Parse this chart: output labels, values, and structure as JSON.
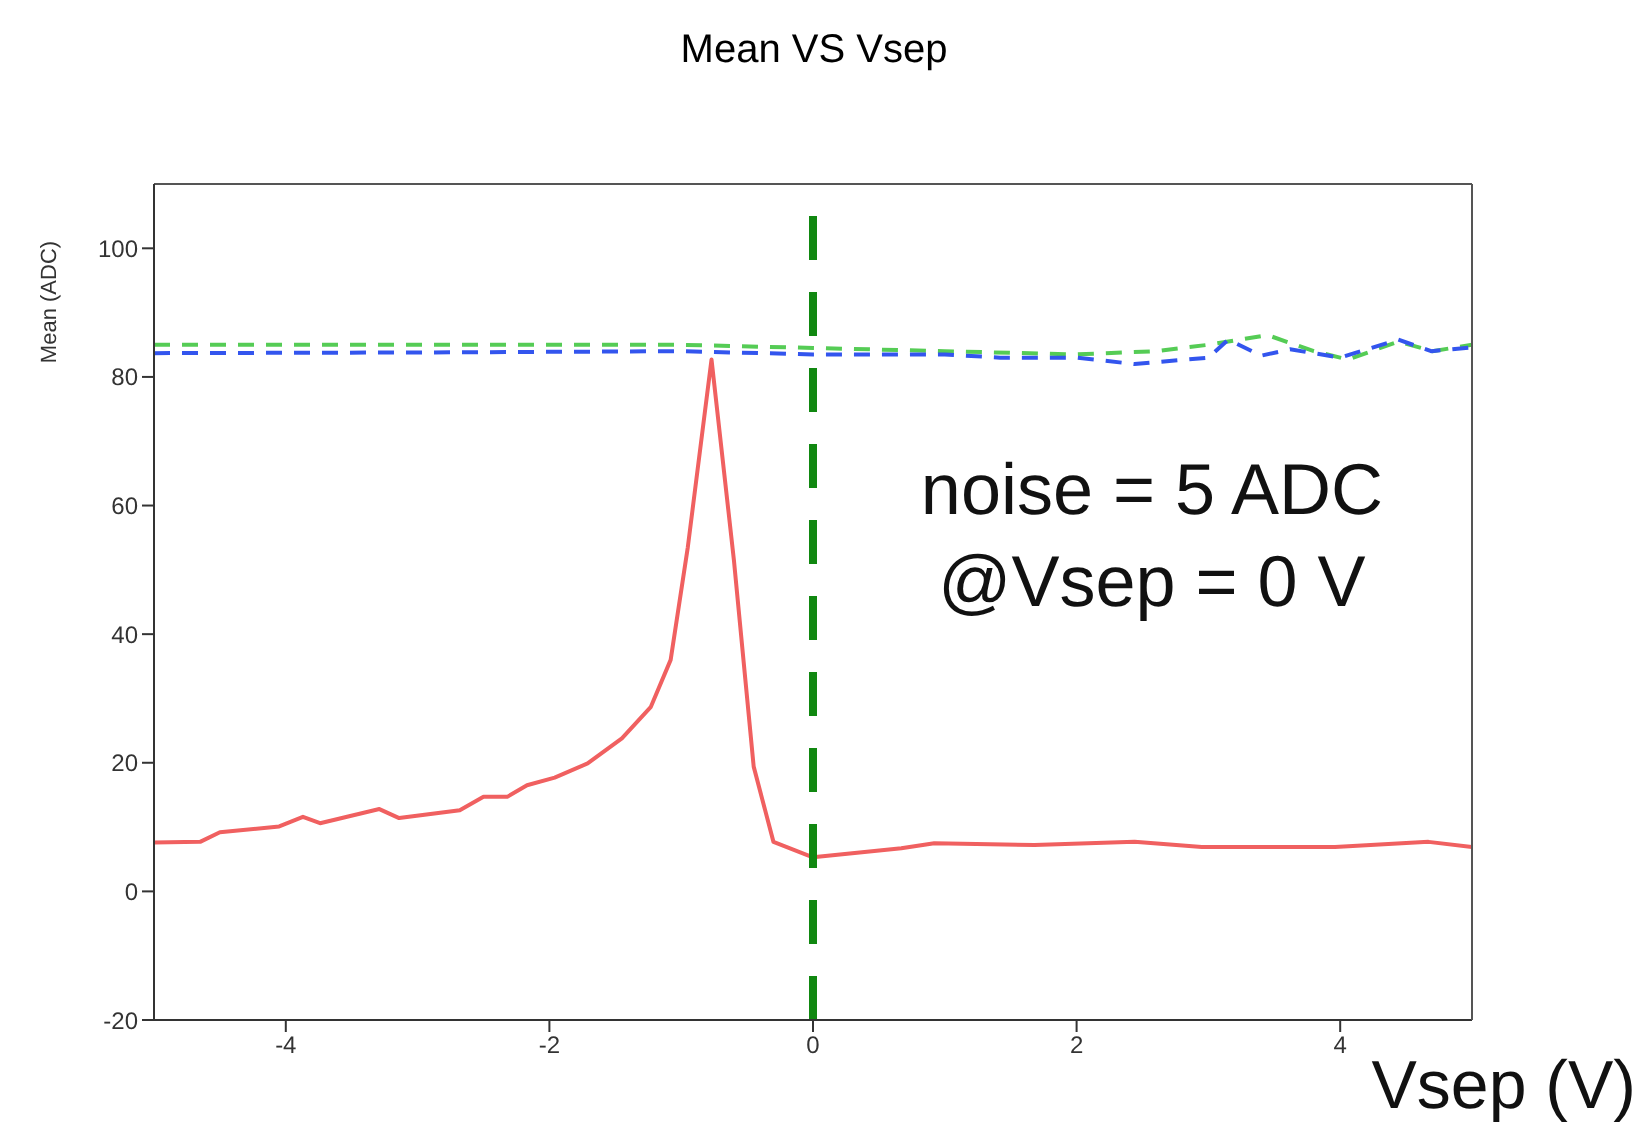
{
  "chart_data": {
    "type": "line",
    "title": "Mean VS Vsep",
    "xlabel": "Vsep (V)",
    "ylabel": "Mean (ADC)",
    "xlim": [
      -5,
      5
    ],
    "xticks": [
      -4,
      -2,
      0,
      2,
      4
    ],
    "ylim": [
      -20,
      110
    ],
    "yticks": [
      -20,
      0,
      20,
      40,
      60,
      80,
      100
    ],
    "grid": false,
    "legend": false,
    "marker": "none",
    "series": [
      {
        "color": "#f06060",
        "line_style": "solid",
        "x": [
          -5,
          -4.65,
          -4.5,
          -4.05,
          -3.87,
          -3.74,
          -3.29,
          -3.14,
          -2.68,
          -2.5,
          -2.32,
          -2.17,
          -1.96,
          -1.71,
          -1.45,
          -1.23,
          -1.08,
          -0.95,
          -0.77,
          -0.6,
          -0.45,
          -0.3,
          0,
          0.67,
          0.92,
          1.68,
          2.44,
          2.95,
          3.96,
          4.67,
          5
        ],
        "values": [
          7.6,
          7.7,
          9.2,
          10.1,
          11.6,
          10.6,
          12.8,
          11.4,
          12.6,
          14.7,
          14.7,
          16.5,
          17.7,
          19.9,
          23.8,
          28.7,
          36,
          53.5,
          82.7,
          51.5,
          19.4,
          7.7,
          5.3,
          6.7,
          7.5,
          7.2,
          7.7,
          6.9,
          6.9,
          7.7,
          6.9
        ]
      },
      {
        "color": "#55cc55",
        "line_style": "dashed",
        "x": [
          -5,
          -3,
          -1,
          0,
          1,
          2,
          2.6,
          3,
          3.45,
          3.8,
          4.06,
          4.44,
          4.7,
          5
        ],
        "values": [
          85,
          85,
          85,
          84.5,
          84,
          83.5,
          84,
          85,
          86.5,
          84,
          82.7,
          85.5,
          84,
          85
        ]
      },
      {
        "color": "#3355ee",
        "line_style": "dashed",
        "x": [
          -5,
          -3,
          -1,
          0,
          1,
          1.42,
          2,
          2.44,
          3,
          3.15,
          3.4,
          3.62,
          4,
          4.44,
          4.69,
          5
        ],
        "values": [
          83.7,
          83.8,
          84,
          83.5,
          83.5,
          83,
          83,
          82,
          83,
          85.8,
          83.3,
          84.3,
          83,
          85.8,
          84,
          84.6
        ]
      }
    ],
    "ref_lines": [
      {
        "axis": "x",
        "value": 0,
        "color": "#118811",
        "line_style": "dashed"
      }
    ],
    "annotations": [
      "noise = 5 ADC",
      "@Vsep = 0 V"
    ]
  }
}
